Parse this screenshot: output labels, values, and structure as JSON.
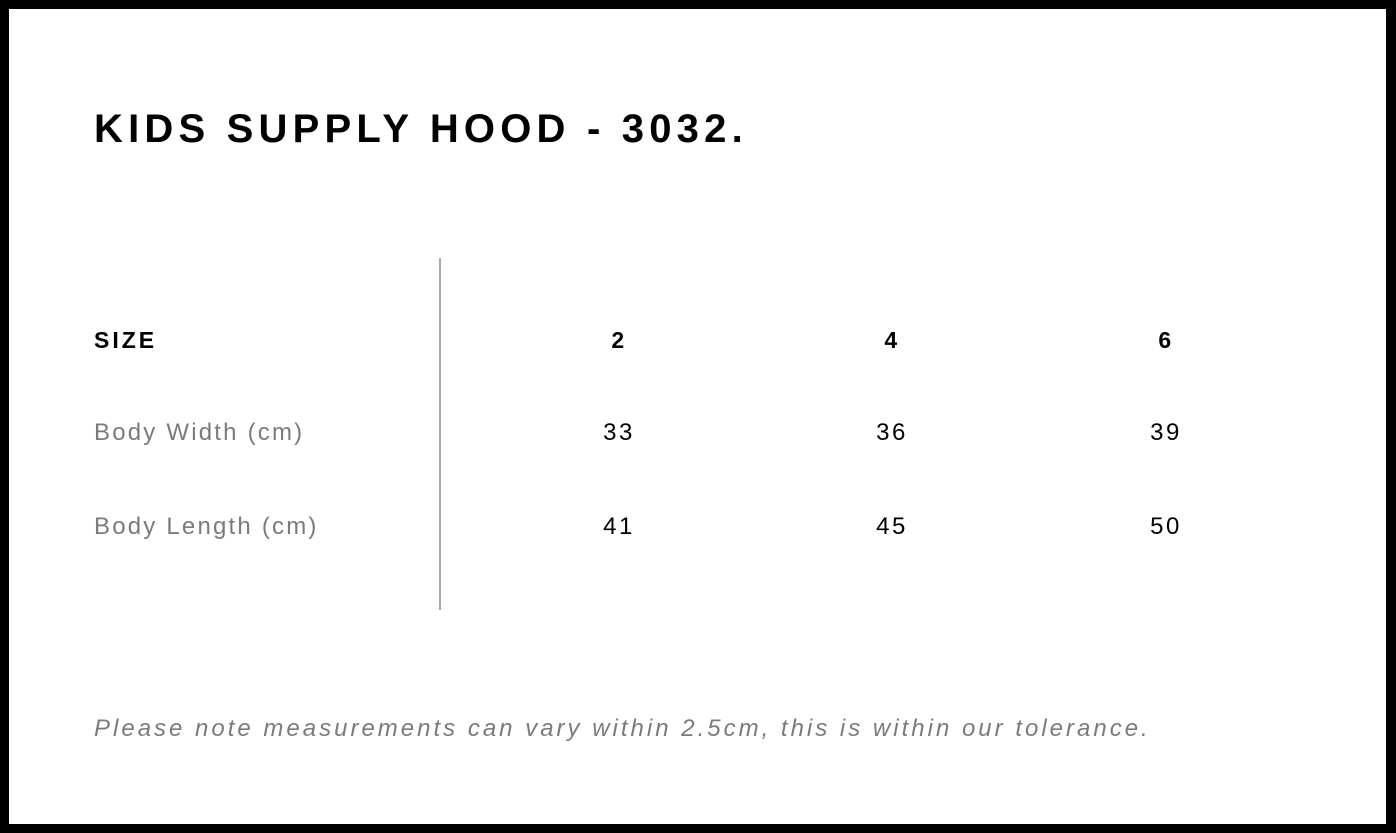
{
  "title": "KIDS SUPPLY HOOD - 3032.",
  "table": {
    "header": {
      "label": "SIZE",
      "sizes": [
        "2",
        "4",
        "6"
      ]
    },
    "rows": [
      {
        "label": "Body Width (cm)",
        "values": [
          "33",
          "36",
          "39"
        ]
      },
      {
        "label": "Body Length (cm)",
        "values": [
          "41",
          "45",
          "50"
        ]
      }
    ]
  },
  "note": "Please note measurements can vary within 2.5cm, this is within our tolerance."
}
